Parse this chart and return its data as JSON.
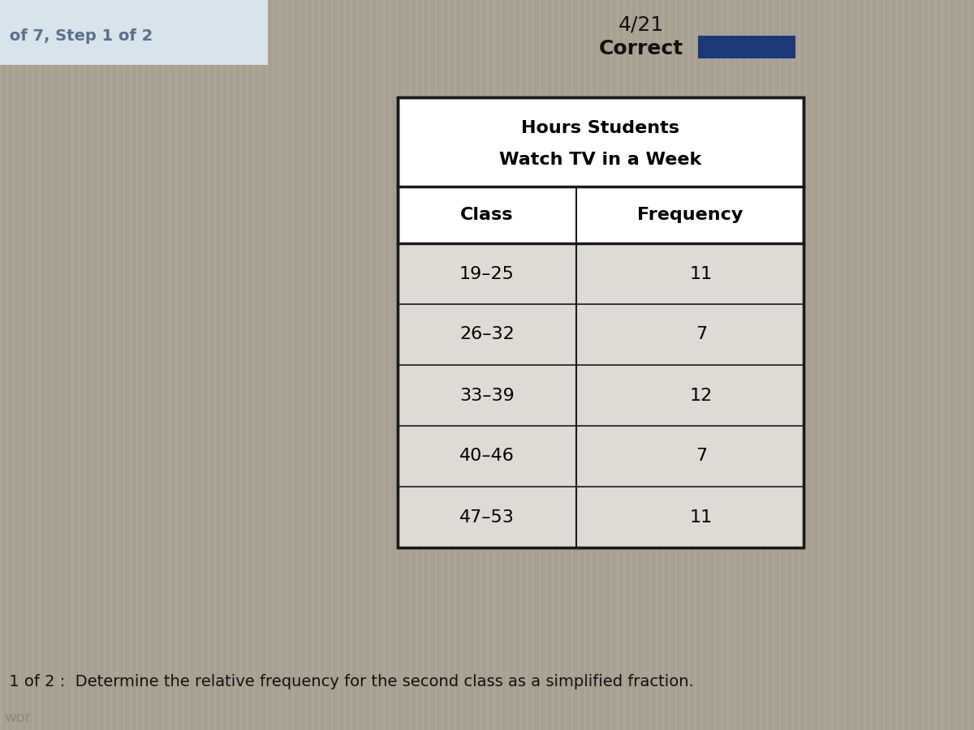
{
  "top_right_label": "4/21",
  "top_right_label2": "Correct",
  "top_left_text": " of 7, Step 1 of 2",
  "table_title_line1": "Hours Students",
  "table_title_line2": "Watch TV in a Week",
  "col_headers": [
    "Class",
    "Frequency"
  ],
  "rows": [
    [
      "19–25",
      "11"
    ],
    [
      "26–32",
      "7"
    ],
    [
      "33–39",
      "12"
    ],
    [
      "40–46",
      "7"
    ],
    [
      "47–53",
      "11"
    ]
  ],
  "bottom_text": " 1 of 2 :  Determine the relative frequency for the second class as a simplified fraction.",
  "bg_color": "#a8a090",
  "table_bg_white": "#ffffff",
  "table_bg_data": "#dedad4",
  "table_border": "#1a1a1a",
  "header_font_size": 16,
  "cell_font_size": 16,
  "title_font_size": 16,
  "blue_rect_color": "#1a3a7a",
  "text_color": "#111111",
  "top_left_bg": "#dce8f0",
  "stripe_color": "#b8b0a4"
}
